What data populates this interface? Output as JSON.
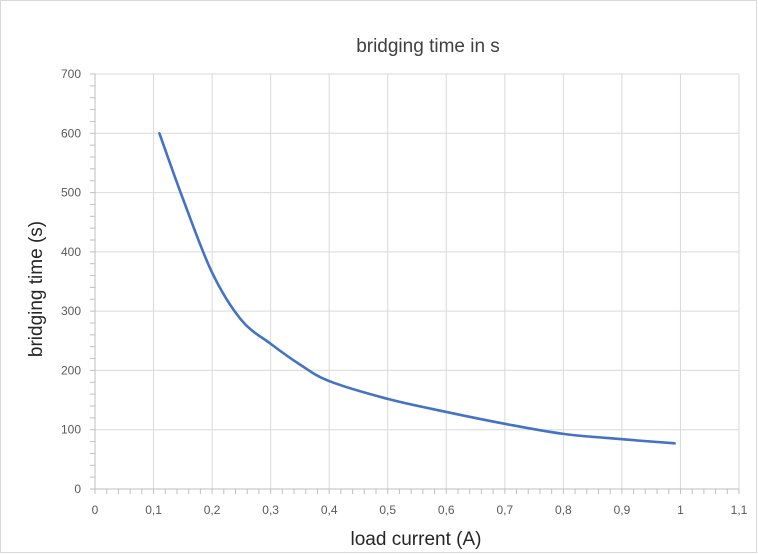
{
  "chart_data": {
    "type": "line",
    "title": "bridging time in s",
    "xlabel": "load current (A)",
    "ylabel": "bridging time (s)",
    "xlim": [
      0,
      1.1
    ],
    "ylim": [
      0,
      700
    ],
    "x_ticks": [
      {
        "value": 0,
        "label": "0"
      },
      {
        "value": 0.1,
        "label": "0,1"
      },
      {
        "value": 0.2,
        "label": "0,2"
      },
      {
        "value": 0.3,
        "label": "0,3"
      },
      {
        "value": 0.4,
        "label": "0,4"
      },
      {
        "value": 0.5,
        "label": "0,5"
      },
      {
        "value": 0.6,
        "label": "0,6"
      },
      {
        "value": 0.7,
        "label": "0,7"
      },
      {
        "value": 0.8,
        "label": "0,8"
      },
      {
        "value": 0.9,
        "label": "0,9"
      },
      {
        "value": 1.0,
        "label": "1"
      },
      {
        "value": 1.1,
        "label": "1,1"
      }
    ],
    "y_ticks": [
      {
        "value": 0,
        "label": "0"
      },
      {
        "value": 100,
        "label": "100"
      },
      {
        "value": 200,
        "label": "200"
      },
      {
        "value": 300,
        "label": "300"
      },
      {
        "value": 400,
        "label": "400"
      },
      {
        "value": 500,
        "label": "500"
      },
      {
        "value": 600,
        "label": "600"
      },
      {
        "value": 700,
        "label": "700"
      }
    ],
    "grid": true,
    "legend": "none",
    "series": [
      {
        "color": "#4472c4",
        "x": [
          0.11,
          0.15,
          0.2,
          0.25,
          0.3,
          0.35,
          0.4,
          0.5,
          0.6,
          0.7,
          0.8,
          0.9,
          0.99
        ],
        "y": [
          600,
          490,
          365,
          285,
          245,
          210,
          182,
          152,
          130,
          110,
          93,
          84,
          77
        ]
      }
    ]
  }
}
